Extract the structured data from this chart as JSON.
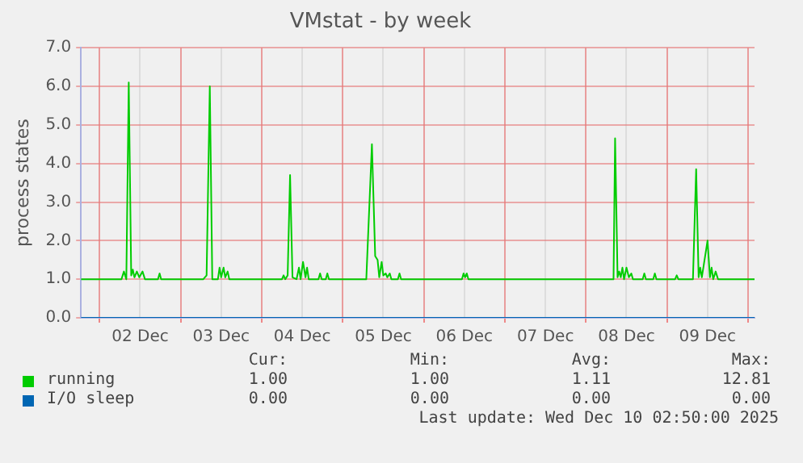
{
  "chart_data": {
    "type": "line",
    "title": "VMstat - by week",
    "ylabel": "process states",
    "xlim": [
      "2025-12-01T18:29",
      "2025-12-10T01:55"
    ],
    "xticks": [
      {
        "value": "2025-12-02",
        "label": null
      },
      {
        "value": "2025-12-02T12:00",
        "label": "02 Dec"
      },
      {
        "value": "2025-12-03",
        "label": null
      },
      {
        "value": "2025-12-03T12:00",
        "label": "03 Dec"
      },
      {
        "value": "2025-12-04",
        "label": null
      },
      {
        "value": "2025-12-04T12:00",
        "label": "04 Dec"
      },
      {
        "value": "2025-12-05",
        "label": null
      },
      {
        "value": "2025-12-05T12:00",
        "label": "05 Dec"
      },
      {
        "value": "2025-12-06",
        "label": null
      },
      {
        "value": "2025-12-06T12:00",
        "label": "06 Dec"
      },
      {
        "value": "2025-12-07",
        "label": null
      },
      {
        "value": "2025-12-07T12:00",
        "label": "07 Dec"
      },
      {
        "value": "2025-12-08",
        "label": null
      },
      {
        "value": "2025-12-08T12:00",
        "label": "08 Dec"
      },
      {
        "value": "2025-12-09",
        "label": null
      },
      {
        "value": "2025-12-09T12:00",
        "label": "09 Dec"
      },
      {
        "value": "2025-12-10",
        "label": null
      }
    ],
    "ylim": [
      0,
      7
    ],
    "yticks": [
      {
        "value": 0,
        "label": "0.0"
      },
      {
        "value": 1,
        "label": "1.0"
      },
      {
        "value": 2,
        "label": "2.0"
      },
      {
        "value": 3,
        "label": "3.0"
      },
      {
        "value": 4,
        "label": "4.0"
      },
      {
        "value": 5,
        "label": "5.0"
      },
      {
        "value": 6,
        "label": "6.0"
      },
      {
        "value": 7,
        "label": "7.0"
      }
    ],
    "grid": true,
    "legend": "bottom left",
    "marker": "none",
    "line_style": "solid",
    "series": [
      {
        "name": "running",
        "color": "#00cc00",
        "x": [
          "2025-12-01T18:29",
          "2025-12-02T06:29",
          "2025-12-02T07:12",
          "2025-12-02T07:55",
          "2025-12-02T08:38",
          "2025-12-02T09:22",
          "2025-12-02T09:50",
          "2025-12-02T10:19",
          "2025-12-02T11:02",
          "2025-12-02T11:46",
          "2025-12-02T12:43",
          "2025-12-02T13:26",
          "2025-12-02T17:17",
          "2025-12-02T17:46",
          "2025-12-02T18:14",
          "2025-12-03T06:43",
          "2025-12-03T07:41",
          "2025-12-03T08:38",
          "2025-12-03T09:22",
          "2025-12-03T11:02",
          "2025-12-03T11:31",
          "2025-12-03T12:00",
          "2025-12-03T12:43",
          "2025-12-03T13:12",
          "2025-12-03T13:55",
          "2025-12-03T14:24",
          "2025-12-04T06:00",
          "2025-12-04T06:29",
          "2025-12-04T06:58",
          "2025-12-04T07:41",
          "2025-12-04T08:24",
          "2025-12-04T09:07",
          "2025-12-04T10:19",
          "2025-12-04T11:02",
          "2025-12-04T11:31",
          "2025-12-04T12:14",
          "2025-12-04T12:58",
          "2025-12-04T13:26",
          "2025-12-04T13:55",
          "2025-12-04T16:48",
          "2025-12-04T17:17",
          "2025-12-04T17:46",
          "2025-12-04T18:58",
          "2025-12-04T19:26",
          "2025-12-04T19:55",
          "2025-12-05T06:58",
          "2025-12-05T08:38",
          "2025-12-05T09:36",
          "2025-12-05T10:19",
          "2025-12-05T10:48",
          "2025-12-05T11:31",
          "2025-12-05T12:00",
          "2025-12-05T12:43",
          "2025-12-05T13:12",
          "2025-12-05T13:55",
          "2025-12-05T14:24",
          "2025-12-05T16:19",
          "2025-12-05T16:48",
          "2025-12-05T17:17",
          "2025-12-06T11:17",
          "2025-12-06T11:46",
          "2025-12-06T12:14",
          "2025-12-06T12:43",
          "2025-12-06T13:12",
          "2025-12-08T08:10",
          "2025-12-08T08:38",
          "2025-12-08T09:22",
          "2025-12-08T09:50",
          "2025-12-08T10:19",
          "2025-12-08T10:48",
          "2025-12-08T11:17",
          "2025-12-08T12:00",
          "2025-12-08T12:43",
          "2025-12-08T13:26",
          "2025-12-08T13:55",
          "2025-12-08T16:48",
          "2025-12-08T17:17",
          "2025-12-08T17:46",
          "2025-12-08T19:55",
          "2025-12-08T20:24",
          "2025-12-08T20:53",
          "2025-12-09T02:24",
          "2025-12-09T02:53",
          "2025-12-09T03:22",
          "2025-12-09T07:41",
          "2025-12-09T08:38",
          "2025-12-09T09:22",
          "2025-12-09T09:50",
          "2025-12-09T10:19",
          "2025-12-09T12:00",
          "2025-12-09T12:43",
          "2025-12-09T13:12",
          "2025-12-09T13:41",
          "2025-12-09T14:24",
          "2025-12-09T15:07",
          "2025-12-10T01:55"
        ],
        "values": [
          1,
          1,
          1.2,
          1,
          6.1,
          1.1,
          1.25,
          1.05,
          1.2,
          1.05,
          1.2,
          1,
          1,
          1.15,
          1,
          1,
          1.1,
          6.0,
          1,
          1,
          1.3,
          1.05,
          1.3,
          1.05,
          1.2,
          1,
          1,
          1.1,
          1,
          1.1,
          3.7,
          1.05,
          1,
          1.3,
          1,
          1.45,
          1.05,
          1.3,
          1,
          1,
          1.15,
          1,
          1,
          1.15,
          1,
          1,
          4.5,
          1.6,
          1.5,
          1.05,
          1.45,
          1.1,
          1.15,
          1.05,
          1.15,
          1,
          1,
          1.15,
          1,
          1,
          1.15,
          1.05,
          1.15,
          1,
          1,
          4.65,
          1.05,
          1.2,
          1.05,
          1.3,
          1,
          1.3,
          1.05,
          1.15,
          1,
          1,
          1.15,
          1,
          1,
          1.15,
          1,
          1,
          1.1,
          1,
          1,
          3.85,
          1.05,
          1.3,
          1.05,
          2.0,
          1.05,
          1.3,
          1,
          1.2,
          1,
          1
        ]
      },
      {
        "name": "I/O sleep",
        "color": "#0066b3",
        "x": [
          "2025-12-01T18:29",
          "2025-12-10T01:55"
        ],
        "values": [
          0,
          0
        ]
      }
    ],
    "annotations": [
      "Cur:",
      "Min:",
      "Avg:",
      "Max:",
      "1.00",
      "1.00",
      "1.11",
      "12.81",
      "0.00",
      "0.00",
      "0.00",
      "0.00",
      "Last update: Wed Dec 10 02:50:00 2025"
    ]
  }
}
